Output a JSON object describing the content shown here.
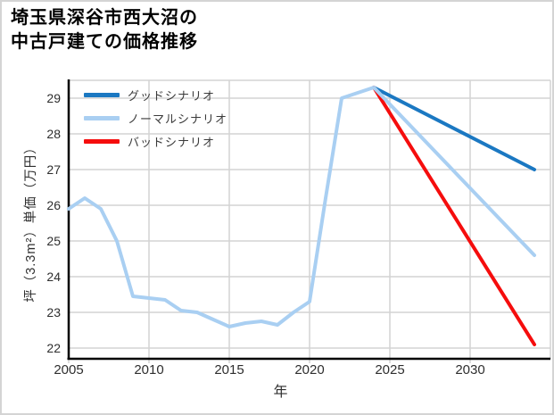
{
  "window": {
    "background": "#ffffff",
    "border_color": "#d4d4d4"
  },
  "title": {
    "line1": "埼玉県深谷市西大沼の",
    "line2": "中古戸建ての価格推移"
  },
  "chart_data": {
    "type": "line",
    "title": "埼玉県深谷市西大沼の中古戸建ての価格推移",
    "xlabel": "年",
    "ylabel": "坪（3.3m²）単価（万円）",
    "xlim": [
      2005,
      2035
    ],
    "ylim": [
      21.7,
      29.5
    ],
    "x_ticks": [
      2005,
      2010,
      2015,
      2020,
      2025,
      2030
    ],
    "y_ticks": [
      22,
      23,
      24,
      25,
      26,
      27,
      28,
      29
    ],
    "grid": true,
    "gridline_color": "#d3d3d3",
    "spine_color": "#000000",
    "tick_label_color": "#2e2e2e",
    "legend_position": "top-left",
    "series": [
      {
        "name": "グッドシナリオ",
        "color": "#1b78c2",
        "x": [
          2024,
          2034
        ],
        "values": [
          29.3,
          27.0
        ]
      },
      {
        "name": "ノーマルシナリオ",
        "color": "#a9cff2",
        "x": [
          2005,
          2006,
          2007,
          2008,
          2009,
          2010,
          2011,
          2012,
          2013,
          2014,
          2015,
          2016,
          2017,
          2018,
          2019,
          2020,
          2021,
          2022,
          2023,
          2024,
          2034
        ],
        "values": [
          25.9,
          26.2,
          25.9,
          25.0,
          23.45,
          23.4,
          23.35,
          23.05,
          23.0,
          22.8,
          22.6,
          22.7,
          22.75,
          22.65,
          23.0,
          23.3,
          26.2,
          29.0,
          29.15,
          29.3,
          24.6
        ]
      },
      {
        "name": "バッドシナリオ",
        "color": "#f50d0d",
        "x": [
          2024,
          2034
        ],
        "values": [
          29.3,
          22.1
        ]
      }
    ]
  }
}
